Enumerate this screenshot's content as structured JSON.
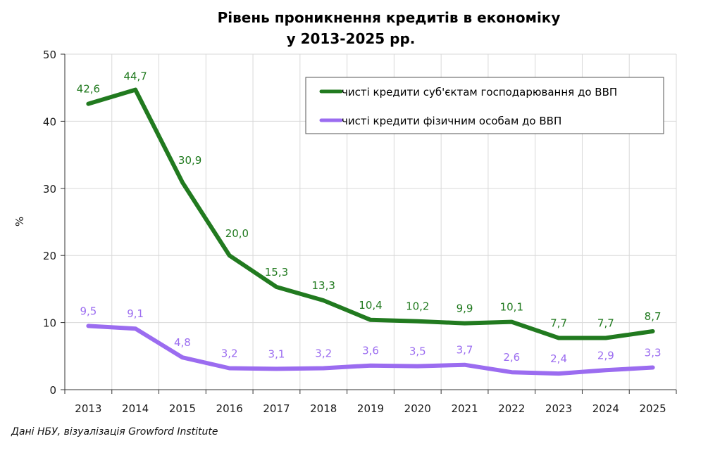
{
  "chart_data": {
    "type": "line",
    "title": "Рівень проникнення кредитів в економіку",
    "subtitle": "у 2013-2025 рр.",
    "xlabel": "",
    "ylabel": "%",
    "ylim": [
      0,
      50
    ],
    "yticks": [
      0,
      10,
      20,
      30,
      40,
      50
    ],
    "grid": true,
    "legend_position": "top-right",
    "categories": [
      "2013",
      "2014",
      "2015",
      "2016",
      "2017",
      "2018",
      "2019",
      "2020",
      "2021",
      "2022",
      "2023",
      "2024",
      "2025"
    ],
    "series": [
      {
        "name": "чисті кредити суб'єктам господарювання  до ВВП",
        "color": "#217a1f",
        "values": [
          42.6,
          44.7,
          30.9,
          20.0,
          15.3,
          13.3,
          10.4,
          10.2,
          9.9,
          10.1,
          7.7,
          7.7,
          8.7
        ],
        "labels": [
          "42,6",
          "44,7",
          "30,9",
          "20,0",
          "15,3",
          "13,3",
          "10,4",
          "10,2",
          "9,9",
          "10,1",
          "7,7",
          "7,7",
          "8,7"
        ]
      },
      {
        "name": "чисті кредити фізичним особам до ВВП",
        "color": "#9b6cf0",
        "values": [
          9.5,
          9.1,
          4.8,
          3.2,
          3.1,
          3.2,
          3.6,
          3.5,
          3.7,
          2.6,
          2.4,
          2.9,
          3.3
        ],
        "labels": [
          "9,5",
          "9,1",
          "4,8",
          "3,2",
          "3,1",
          "3,2",
          "3,6",
          "3,5",
          "3,7",
          "2,6",
          "2,4",
          "2,9",
          "3,3"
        ]
      }
    ],
    "source": "Дані НБУ, візуалізація Growford Institute"
  }
}
